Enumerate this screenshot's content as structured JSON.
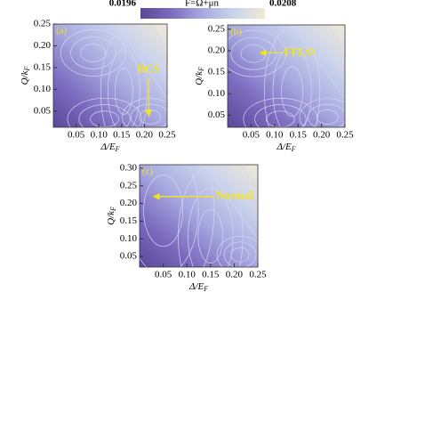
{
  "colorbar": {
    "title": "F=Ω+μn",
    "clim": [
      0.0196,
      0.0208
    ],
    "ticks": [
      0.0196,
      0.0208
    ],
    "colormap": [
      "#5a4798",
      "#7c6cc0",
      "#a7a9e0",
      "#c9d3ec",
      "#f1e9d6"
    ]
  },
  "chart_data": [
    {
      "type": "contour",
      "panel_label": "(a)",
      "xlabel": [
        "Δ/E",
        "F"
      ],
      "ylabel": [
        "Q/k",
        "F"
      ],
      "xlim": [
        0,
        0.25
      ],
      "ylim": [
        0.013,
        0.25
      ],
      "xticks": [
        0.05,
        {
          "value": 0.1,
          "label": "0.10"
        },
        0.15,
        {
          "value": 0.2,
          "label": "0.20"
        },
        0.25
      ],
      "yticks": [
        0.05,
        {
          "value": 0.1,
          "label": "0.10"
        },
        0.15,
        {
          "value": 0.2,
          "label": "0.20"
        },
        0.25
      ],
      "annotation": {
        "text": "BCS",
        "xy": [
          0.21,
          0.03
        ]
      }
    },
    {
      "type": "contour",
      "panel_label": "(b)",
      "xlabel": [
        "Δ/E",
        "F"
      ],
      "ylabel": [
        "Q/k",
        "F"
      ],
      "xlim": [
        0,
        0.25
      ],
      "ylim": [
        0.022,
        0.26
      ],
      "xticks": [
        0.05,
        {
          "value": 0.1,
          "label": "0.10"
        },
        0.15,
        {
          "value": 0.2,
          "label": "0.20"
        },
        0.25
      ],
      "yticks": [
        0.05,
        {
          "value": 0.1,
          "label": "0.10"
        },
        0.15,
        {
          "value": 0.2,
          "label": "0.20"
        },
        0.25
      ],
      "annotation": {
        "text": "FFLO",
        "xy": [
          0.06,
          0.195
        ]
      }
    },
    {
      "type": "contour",
      "panel_label": "(c)",
      "xlabel": [
        "Δ/E",
        "F"
      ],
      "ylabel": [
        "Q/k",
        "F"
      ],
      "xlim": [
        0,
        0.25
      ],
      "ylim": [
        0.02,
        0.31
      ],
      "xticks": [
        0.05,
        {
          "value": 0.1,
          "label": "0.10"
        },
        0.15,
        {
          "value": 0.2,
          "label": "0.20"
        },
        0.25
      ],
      "yticks": [
        0.05,
        {
          "value": 0.1,
          "label": "0.10"
        },
        0.15,
        {
          "value": 0.2,
          "label": "0.20"
        },
        0.25,
        {
          "value": 0.3,
          "label": "0.30"
        }
      ],
      "annotation": {
        "text": "Normal",
        "xy": [
          0.02,
          0.22
        ]
      }
    }
  ]
}
